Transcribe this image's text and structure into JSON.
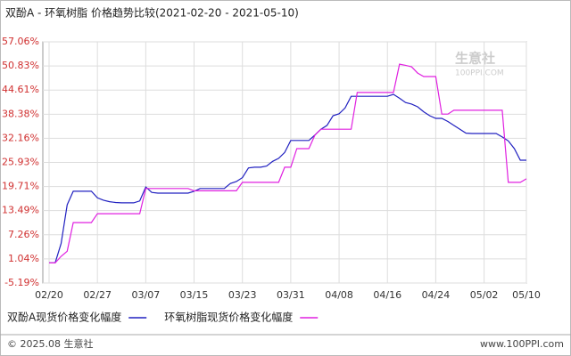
{
  "chart_data": {
    "type": "line",
    "title": "双酚A - 环氧树脂 价格趋势比较(2021-02-20 - 2021-05-10)",
    "watermark": "生意社",
    "watermark_url": "100PPI.COM",
    "footer_left": "© 2025.08 生意社",
    "footer_right": "www.100PPI.com",
    "categories": [
      "02/20",
      null,
      null,
      null,
      null,
      null,
      null,
      null,
      "02/27",
      null,
      null,
      null,
      null,
      null,
      null,
      null,
      "03/07",
      null,
      null,
      null,
      null,
      null,
      null,
      null,
      "03/15",
      null,
      null,
      null,
      null,
      null,
      null,
      null,
      "03/23",
      null,
      null,
      null,
      null,
      null,
      null,
      null,
      "03/31",
      null,
      null,
      null,
      null,
      null,
      null,
      null,
      "04/08",
      null,
      null,
      null,
      null,
      null,
      null,
      null,
      "04/16",
      null,
      null,
      null,
      null,
      null,
      null,
      null,
      "04/24",
      null,
      null,
      null,
      null,
      null,
      null,
      null,
      "05/02",
      null,
      null,
      null,
      null,
      null,
      null,
      "05/10"
    ],
    "series": [
      {
        "name": "双酚A现货价格变化幅度",
        "color": "#2020c0",
        "values": [
          0,
          0,
          5,
          15,
          18.5,
          18.5,
          18.5,
          18.5,
          16.8,
          16.2,
          15.8,
          15.6,
          15.5,
          15.5,
          15.5,
          16,
          19.6,
          18.2,
          18,
          18,
          18,
          18,
          18,
          18,
          18.5,
          19.2,
          19.2,
          19.2,
          19.2,
          19.2,
          20.5,
          21,
          22,
          24.5,
          24.7,
          24.7,
          25,
          26.2,
          27,
          28.5,
          31.6,
          31.6,
          31.6,
          31.6,
          33,
          34.5,
          35.5,
          38,
          38.5,
          40,
          43,
          43,
          43,
          43,
          43,
          43,
          43,
          43.5,
          42.5,
          41.4,
          41,
          40.3,
          39,
          38,
          37.3,
          37.3,
          36.5,
          35.5,
          34.5,
          33.5,
          33.4,
          33.4,
          33.4,
          33.4,
          33.4,
          32.5,
          31.5,
          29.5,
          26.5,
          26.5
        ]
      },
      {
        "name": "环氧树脂现货价格变化幅度",
        "color": "#e020e0",
        "values": [
          0,
          0,
          1.7,
          3,
          10.4,
          10.4,
          10.4,
          10.4,
          12.7,
          12.7,
          12.7,
          12.7,
          12.7,
          12.7,
          12.7,
          12.7,
          19.2,
          19.2,
          19.2,
          19.2,
          19.2,
          19.2,
          19.2,
          19.2,
          18.6,
          18.6,
          18.6,
          18.6,
          18.6,
          18.6,
          18.6,
          18.6,
          20.8,
          20.8,
          20.8,
          20.8,
          20.8,
          20.8,
          20.8,
          24.7,
          24.7,
          29.5,
          29.5,
          29.5,
          33,
          34.5,
          34.5,
          34.5,
          34.5,
          34.5,
          34.5,
          44,
          44,
          44,
          44,
          44,
          44,
          44,
          51.3,
          51,
          50.6,
          49,
          48.1,
          48.1,
          48.1,
          38.4,
          38.4,
          39.4,
          39.4,
          39.4,
          39.4,
          39.4,
          39.4,
          39.4,
          39.4,
          39.4,
          20.8,
          20.8,
          20.8,
          21.7
        ]
      }
    ],
    "ylim": [
      -5.19,
      57.06
    ],
    "yticks": [
      {
        "value": -5.19,
        "label": "-5.19%"
      },
      {
        "value": 1.04,
        "label": "1.04%"
      },
      {
        "value": 7.26,
        "label": "7.26%"
      },
      {
        "value": 13.49,
        "label": "13.49%"
      },
      {
        "value": 19.71,
        "label": "19.71%"
      },
      {
        "value": 25.93,
        "label": "25.93%"
      },
      {
        "value": 32.16,
        "label": "32.16%"
      },
      {
        "value": 38.38,
        "label": "38.38%"
      },
      {
        "value": 44.61,
        "label": "44.61%"
      },
      {
        "value": 50.83,
        "label": "50.83%"
      },
      {
        "value": 57.06,
        "label": "57.06%"
      }
    ],
    "grid": true
  }
}
